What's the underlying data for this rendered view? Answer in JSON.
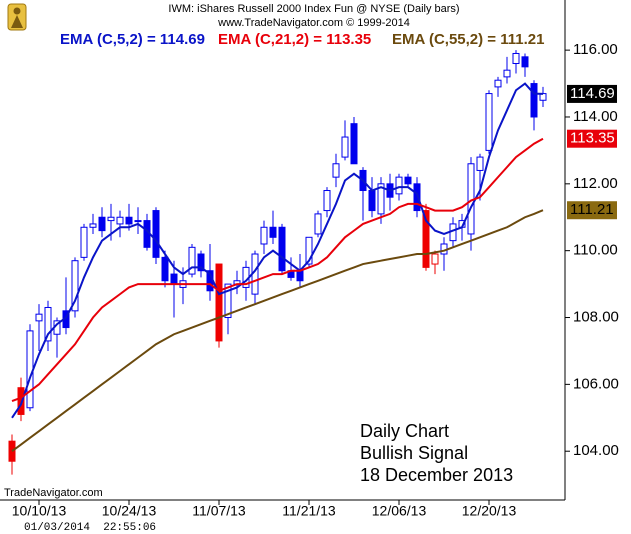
{
  "chart_data": {
    "type": "candlestick",
    "title": "IWM:  iShares Russell 2000 Index Fun @ NYSE  (Daily bars)",
    "subtitle": "www.TradeNavigator.com © 1999-2014",
    "categories": [
      null,
      null,
      null,
      "10/10/13",
      null,
      null,
      null,
      null,
      null,
      null,
      null,
      null,
      null,
      "10/24/13",
      null,
      null,
      null,
      null,
      null,
      null,
      null,
      null,
      null,
      "11/07/13",
      null,
      null,
      null,
      null,
      null,
      null,
      null,
      null,
      null,
      "11/21/13",
      null,
      null,
      null,
      null,
      null,
      null,
      null,
      null,
      null,
      "12/06/13",
      null,
      null,
      null,
      null,
      null,
      null,
      null,
      null,
      null,
      "12/20/13",
      null,
      null,
      null,
      null,
      null,
      null
    ],
    "open": [
      104.3,
      105.9,
      105.3,
      107.9,
      107.3,
      107.5,
      108.2,
      108.2,
      109.8,
      110.7,
      111.0,
      110.9,
      110.8,
      111.0,
      110.9,
      110.9,
      111.2,
      109.8,
      109.3,
      108.9,
      109.3,
      109.9,
      109.4,
      109.6,
      108.0,
      109.0,
      108.9,
      108.7,
      110.2,
      110.7,
      110.7,
      109.4,
      109.4,
      109.6,
      110.5,
      111.2,
      112.2,
      112.8,
      113.8,
      112.4,
      111.8,
      111.1,
      112.0,
      111.7,
      112.2,
      112.0,
      111.2,
      109.6,
      109.9,
      110.3,
      110.7,
      110.5,
      112.4,
      113.0,
      114.9,
      115.2,
      115.6,
      115.8,
      115.0,
      114.5
    ],
    "high": [
      104.5,
      106.2,
      107.8,
      108.4,
      108.5,
      108.0,
      109.2,
      109.8,
      110.8,
      111.1,
      111.3,
      111.4,
      111.2,
      111.4,
      111.3,
      111.1,
      111.3,
      110.0,
      109.7,
      109.5,
      110.2,
      110.0,
      110.2,
      109.6,
      109.0,
      109.4,
      109.7,
      110.0,
      110.9,
      111.2,
      110.8,
      109.8,
      109.9,
      110.4,
      111.2,
      111.9,
      112.9,
      113.9,
      114.0,
      112.5,
      112.2,
      112.2,
      112.3,
      112.3,
      112.3,
      112.2,
      111.4,
      110.0,
      110.4,
      111.0,
      111.1,
      112.8,
      112.9,
      114.8,
      115.2,
      115.8,
      116.0,
      115.9,
      115.1,
      114.9
    ],
    "low": [
      103.3,
      104.9,
      105.2,
      107.0,
      107.0,
      106.8,
      107.5,
      108.0,
      109.7,
      110.5,
      110.4,
      110.3,
      110.4,
      110.6,
      110.5,
      110.0,
      109.6,
      108.9,
      108.0,
      108.4,
      109.2,
      109.2,
      108.5,
      107.1,
      107.5,
      108.7,
      108.5,
      108.4,
      109.9,
      110.2,
      109.3,
      109.1,
      108.9,
      109.5,
      110.4,
      111.0,
      111.9,
      112.7,
      112.6,
      110.9,
      111.0,
      110.8,
      111.2,
      111.5,
      111.9,
      111.0,
      109.4,
      109.3,
      109.4,
      110.1,
      110.3,
      110.0,
      111.5,
      112.9,
      114.6,
      115.0,
      115.3,
      115.2,
      113.6,
      114.3
    ],
    "close": [
      103.7,
      105.1,
      107.6,
      108.1,
      108.3,
      107.9,
      107.7,
      109.7,
      110.7,
      110.8,
      110.6,
      111.0,
      111.0,
      110.8,
      110.9,
      110.1,
      109.8,
      109.1,
      109.0,
      109.1,
      110.1,
      109.4,
      108.8,
      107.3,
      109.0,
      109.1,
      109.5,
      109.9,
      110.7,
      110.4,
      109.4,
      109.2,
      109.1,
      110.4,
      111.1,
      111.8,
      112.6,
      113.4,
      112.6,
      111.8,
      111.2,
      112.0,
      111.6,
      112.2,
      112.0,
      111.2,
      109.5,
      109.9,
      110.2,
      110.8,
      110.9,
      112.6,
      112.8,
      114.7,
      115.1,
      115.4,
      115.9,
      115.5,
      114.0,
      114.7
    ],
    "colors": [
      "#ee0000",
      "#ee0000",
      "#0000ee",
      "#0000ee",
      "#0000ee",
      "#0000ee",
      "#0000ee",
      "#0000ee",
      "#0000ee",
      "#0000ee",
      "#0000ee",
      "#0000ee",
      "#0000ee",
      "#0000ee",
      "#0000ee",
      "#0000ee",
      "#0000ee",
      "#0000ee",
      "#0000ee",
      "#0000ee",
      "#0000ee",
      "#0000ee",
      "#0000ee",
      "#ee0000",
      "#0000ee",
      "#0000ee",
      "#0000ee",
      "#0000ee",
      "#0000ee",
      "#0000ee",
      "#0000ee",
      "#0000ee",
      "#0000ee",
      "#0000ee",
      "#0000ee",
      "#0000ee",
      "#0000ee",
      "#0000ee",
      "#0000ee",
      "#0000ee",
      "#0000ee",
      "#0000ee",
      "#0000ee",
      "#0000ee",
      "#0000ee",
      "#0000ee",
      "#ee0000",
      "#ee0000",
      "#0000ee",
      "#0000ee",
      "#0000ee",
      "#0000ee",
      "#0000ee",
      "#0000ee",
      "#0000ee",
      "#0000ee",
      "#0000ee",
      "#0000ee",
      "#0000ee",
      "#0000ee"
    ],
    "series": [
      {
        "name": "EMA (C,5,2) = 114.69",
        "color": "#0a14c8",
        "tag_color": "#000000",
        "tag_text_color": "#ffffff",
        "values": [
          105.0,
          105.4,
          106.2,
          106.9,
          107.5,
          107.8,
          108.0,
          108.5,
          109.2,
          109.8,
          110.3,
          110.5,
          110.7,
          110.7,
          110.8,
          110.6,
          110.3,
          109.9,
          109.5,
          109.3,
          109.5,
          109.5,
          109.3,
          108.7,
          108.8,
          108.9,
          109.1,
          109.4,
          109.8,
          110.0,
          109.8,
          109.6,
          109.4,
          109.7,
          110.2,
          110.8,
          111.4,
          112.1,
          112.3,
          112.1,
          111.8,
          111.9,
          111.8,
          111.9,
          111.9,
          111.7,
          110.9,
          110.6,
          110.5,
          110.6,
          110.7,
          111.3,
          111.8,
          112.8,
          113.6,
          114.2,
          114.8,
          115.0,
          114.7,
          114.69
        ]
      },
      {
        "name": "EMA (C,21,2) = 113.35",
        "color": "#e8000a",
        "tag_color": "#e8000a",
        "tag_text_color": "#ffffff",
        "values": [
          105.5,
          105.6,
          105.8,
          106.0,
          106.3,
          106.6,
          106.9,
          107.2,
          107.6,
          108.0,
          108.3,
          108.5,
          108.7,
          108.9,
          109.0,
          109.0,
          109.0,
          109.0,
          109.0,
          109.0,
          109.0,
          109.0,
          109.0,
          108.8,
          108.9,
          109.0,
          109.0,
          109.1,
          109.2,
          109.3,
          109.3,
          109.4,
          109.4,
          109.5,
          109.6,
          109.8,
          110.1,
          110.4,
          110.6,
          110.8,
          110.9,
          111.0,
          111.1,
          111.3,
          111.4,
          111.4,
          111.3,
          111.2,
          111.2,
          111.2,
          111.3,
          111.5,
          111.6,
          111.9,
          112.2,
          112.5,
          112.8,
          113.0,
          113.2,
          113.35
        ]
      },
      {
        "name": "EMA (C,55,2) = 111.21",
        "color": "#6b4a0e",
        "tag_color": "#8a6a10",
        "tag_text_color": "#000000",
        "values": [
          104.0,
          104.2,
          104.4,
          104.6,
          104.8,
          105.0,
          105.2,
          105.4,
          105.6,
          105.8,
          106.0,
          106.2,
          106.4,
          106.6,
          106.8,
          107.0,
          107.2,
          107.35,
          107.5,
          107.6,
          107.7,
          107.8,
          107.9,
          108.0,
          108.1,
          108.2,
          108.3,
          108.4,
          108.5,
          108.6,
          108.7,
          108.8,
          108.9,
          109.0,
          109.1,
          109.2,
          109.3,
          109.4,
          109.5,
          109.6,
          109.65,
          109.7,
          109.75,
          109.8,
          109.85,
          109.9,
          109.9,
          109.95,
          110.0,
          110.1,
          110.2,
          110.3,
          110.4,
          110.5,
          110.6,
          110.7,
          110.85,
          111.0,
          111.1,
          111.21
        ]
      }
    ],
    "ylim": [
      102.6,
      117.5
    ],
    "yticks": [
      {
        "value": 104,
        "label": "104.00"
      },
      {
        "value": 106,
        "label": "106.00"
      },
      {
        "value": 108,
        "label": "108.00"
      },
      {
        "value": 110,
        "label": "110.00"
      },
      {
        "value": 112,
        "label": "112.00"
      },
      {
        "value": 114,
        "label": "114.00"
      },
      {
        "value": 116,
        "label": "116.00"
      }
    ],
    "grid": false,
    "annotations": [
      "Daily Chart",
      "Bullish Signal",
      "18 December 2013"
    ],
    "watermark": "TradeNavigator.com",
    "timestamp": "01/03/2014  22:55:06"
  }
}
